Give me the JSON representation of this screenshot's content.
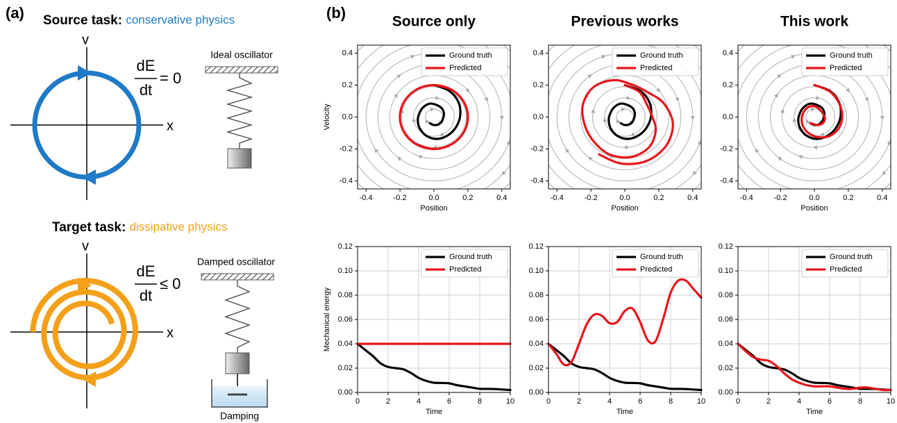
{
  "panel_a": {
    "label": "(a)",
    "source": {
      "heading": "Source task:",
      "subtitle": "conservative physics",
      "v": "v",
      "x": "x",
      "numerator": "dE",
      "denominator": "dt",
      "relation": "= 0",
      "oscillator": "Ideal oscillator"
    },
    "target": {
      "heading": "Target task:",
      "subtitle": "dissipative physics",
      "v": "v",
      "x": "x",
      "numerator": "dE",
      "denominator": "dt",
      "relation": "≤ 0",
      "oscillator": "Damped oscillator",
      "damping": "Damping"
    }
  },
  "panel_b": {
    "label": "(b)"
  },
  "chart_data": [
    {
      "type": "line",
      "title": "Source only",
      "x_label": "Position",
      "y_label": "Velocity",
      "streamlines": true,
      "grid": false,
      "legend": "upper right",
      "xlim": [
        -0.45,
        0.45
      ],
      "ylim": [
        -0.45,
        0.45
      ],
      "xticks": [
        -0.4,
        -0.2,
        {
          "value": 0,
          "label": "0.0"
        },
        0.2,
        0.4
      ],
      "yticks": [
        -0.4,
        -0.2,
        {
          "value": 0,
          "label": "0.0"
        },
        0.2,
        0.4
      ],
      "series": [
        {
          "name": "Ground truth",
          "color": "#000000",
          "x": [
            0,
            0.09,
            0.145,
            0.155,
            0.132,
            0.084,
            0.019,
            -0.044,
            -0.083,
            -0.095,
            -0.085,
            -0.062,
            -0.024,
            0.017,
            0.047,
            0.059,
            0.054,
            0.043,
            0.022,
            -0.004,
            -0.024
          ],
          "values": [
            0.2,
            0.164,
            0.093,
            0.011,
            -0.06,
            -0.113,
            -0.137,
            -0.118,
            -0.072,
            -0.02,
            0.025,
            0.062,
            0.084,
            0.075,
            0.054,
            0.022,
            -0.008,
            -0.033,
            -0.048,
            -0.049,
            -0.038
          ]
        },
        {
          "name": "Predicted",
          "color": "#e8141b",
          "x": [
            0,
            0.096,
            0.168,
            0.199,
            0.182,
            0.12,
            0.028,
            -0.07,
            -0.151,
            -0.196,
            -0.192,
            -0.141,
            -0.056,
            0.043,
            0.131,
            0.188,
            0.198,
            0.16,
            0.082,
            -0.015,
            -0.109
          ],
          "values": [
            0.2,
            0.176,
            0.108,
            0.014,
            -0.083,
            -0.16,
            -0.198,
            -0.187,
            -0.131,
            -0.042,
            0.057,
            0.142,
            0.192,
            0.195,
            0.151,
            0.069,
            -0.029,
            -0.12,
            -0.182,
            -0.199,
            -0.168
          ]
        }
      ]
    },
    {
      "type": "line",
      "title": "Previous works",
      "x_label": "Position",
      "streamlines": true,
      "grid": false,
      "legend": "upper right",
      "xlim": [
        -0.45,
        0.45
      ],
      "ylim": [
        -0.45,
        0.45
      ],
      "xticks": [
        -0.4,
        -0.2,
        {
          "value": 0,
          "label": "0.0"
        },
        0.2,
        0.4
      ],
      "yticks": [
        -0.4,
        -0.2,
        {
          "value": 0,
          "label": "0.0"
        },
        0.2,
        0.4
      ],
      "series": [
        {
          "name": "Ground truth",
          "color": "#000000",
          "x": [
            0,
            0.09,
            0.145,
            0.155,
            0.132,
            0.084,
            0.019,
            -0.044,
            -0.083,
            -0.095,
            -0.085,
            -0.062,
            -0.024,
            0.017,
            0.047,
            0.059,
            0.054,
            0.043,
            0.022,
            -0.004,
            -0.024
          ],
          "values": [
            0.2,
            0.164,
            0.093,
            0.011,
            -0.06,
            -0.113,
            -0.137,
            -0.118,
            -0.072,
            -0.02,
            0.025,
            0.062,
            0.084,
            0.075,
            0.054,
            0.022,
            -0.008,
            -0.033,
            -0.048,
            -0.049,
            -0.038
          ]
        },
        {
          "name": "Predicted",
          "color": "#e8141b",
          "x": [
            0,
            0.086,
            0.128,
            0.158,
            0.182,
            0.142,
            0.036,
            -0.088,
            -0.181,
            -0.236,
            -0.248,
            -0.186,
            -0.067,
            0.045,
            0.135,
            0.23,
            0.283,
            0.242,
            0.125,
            -0.022,
            -0.152
          ],
          "values": [
            0.2,
            0.157,
            0.082,
            0.011,
            -0.083,
            -0.19,
            -0.25,
            -0.235,
            -0.156,
            -0.051,
            0.074,
            0.186,
            0.231,
            0.202,
            0.155,
            0.085,
            -0.042,
            -0.182,
            -0.276,
            -0.291,
            -0.234
          ]
        }
      ]
    },
    {
      "type": "line",
      "title": "This work",
      "x_label": "Position",
      "streamlines": true,
      "grid": false,
      "legend": "upper right",
      "xlim": [
        -0.45,
        0.45
      ],
      "ylim": [
        -0.45,
        0.45
      ],
      "xticks": [
        -0.4,
        -0.2,
        {
          "value": 0,
          "label": "0.0"
        },
        0.2,
        0.4
      ],
      "yticks": [
        -0.4,
        -0.2,
        {
          "value": 0,
          "label": "0.0"
        },
        0.2,
        0.4
      ],
      "series": [
        {
          "name": "Ground truth",
          "color": "#000000",
          "x": [
            0,
            0.09,
            0.145,
            0.155,
            0.132,
            0.084,
            0.019,
            -0.044,
            -0.083,
            -0.095,
            -0.085,
            -0.062,
            -0.024,
            0.017,
            0.047,
            0.059,
            0.054,
            0.043,
            0.022,
            -0.004,
            -0.024
          ],
          "values": [
            0.2,
            0.164,
            0.093,
            0.011,
            -0.06,
            -0.113,
            -0.137,
            -0.118,
            -0.072,
            -0.02,
            0.025,
            0.062,
            0.084,
            0.075,
            0.054,
            0.022,
            -0.008,
            -0.033,
            -0.048,
            -0.049,
            -0.038
          ]
        },
        {
          "name": "Predicted",
          "color": "#e8141b",
          "x": [
            0,
            0.088,
            0.143,
            0.164,
            0.146,
            0.089,
            0.018,
            -0.037,
            -0.067,
            -0.075,
            -0.068,
            -0.05,
            -0.02,
            0.014,
            0.036,
            0.052,
            0.062,
            0.05,
            0.023,
            -0.003,
            -0.024
          ],
          "values": [
            0.2,
            0.162,
            0.092,
            0.012,
            -0.067,
            -0.119,
            -0.125,
            -0.098,
            -0.058,
            -0.016,
            0.02,
            0.05,
            0.068,
            0.062,
            0.041,
            0.019,
            -0.009,
            -0.038,
            -0.05,
            -0.045,
            -0.038
          ]
        }
      ]
    },
    {
      "type": "line",
      "x_label": "Time",
      "y_label": "Mechanical energy",
      "streamlines": false,
      "grid": true,
      "legend": "upper right",
      "xlim": [
        0,
        10
      ],
      "ylim": [
        0,
        0.12
      ],
      "xticks": [
        0,
        2,
        4,
        6,
        8,
        10
      ],
      "yticks": [
        {
          "value": 0,
          "label": "0.00"
        },
        {
          "value": 0.02,
          "label": "0.02"
        },
        {
          "value": 0.04,
          "label": "0.04"
        },
        {
          "value": 0.06,
          "label": "0.06"
        },
        {
          "value": 0.08,
          "label": "0.08"
        },
        {
          "value": 0.1,
          "label": "0.10"
        },
        {
          "value": 0.12,
          "label": "0.12"
        }
      ],
      "series": [
        {
          "name": "Ground truth",
          "color": "#000000",
          "x": [
            0,
            0.5,
            1,
            1.5,
            2,
            2.5,
            3,
            3.5,
            4,
            4.5,
            5,
            5.5,
            6,
            6.5,
            7,
            7.5,
            8,
            8.5,
            9,
            9.5,
            10
          ],
          "values": [
            0.04,
            0.035,
            0.03,
            0.024,
            0.021,
            0.02,
            0.019,
            0.016,
            0.012,
            0.0095,
            0.008,
            0.0078,
            0.0075,
            0.006,
            0.005,
            0.004,
            0.003,
            0.0029,
            0.0028,
            0.0024,
            0.002
          ]
        },
        {
          "name": "Predicted",
          "color": "#e8141b",
          "x": [
            0,
            10
          ],
          "values": [
            0.04,
            0.04
          ]
        }
      ]
    },
    {
      "type": "line",
      "x_label": "Time",
      "streamlines": false,
      "grid": true,
      "legend": "upper right",
      "xlim": [
        0,
        10
      ],
      "ylim": [
        0,
        0.12
      ],
      "xticks": [
        0,
        2,
        4,
        6,
        8,
        10
      ],
      "yticks": [
        {
          "value": 0,
          "label": "0.00"
        },
        {
          "value": 0.02,
          "label": "0.02"
        },
        {
          "value": 0.04,
          "label": "0.04"
        },
        {
          "value": 0.06,
          "label": "0.06"
        },
        {
          "value": 0.08,
          "label": "0.08"
        },
        {
          "value": 0.1,
          "label": "0.10"
        },
        {
          "value": 0.12,
          "label": "0.12"
        }
      ],
      "series": [
        {
          "name": "Ground truth",
          "color": "#000000",
          "x": [
            0,
            0.5,
            1,
            1.5,
            2,
            2.5,
            3,
            3.5,
            4,
            4.5,
            5,
            5.5,
            6,
            6.5,
            7,
            7.5,
            8,
            8.5,
            9,
            9.5,
            10
          ],
          "values": [
            0.04,
            0.035,
            0.03,
            0.024,
            0.021,
            0.02,
            0.019,
            0.016,
            0.012,
            0.0095,
            0.008,
            0.0078,
            0.0075,
            0.006,
            0.005,
            0.004,
            0.003,
            0.0029,
            0.0028,
            0.0024,
            0.002
          ]
        },
        {
          "name": "Predicted",
          "color": "#e8141b",
          "x": [
            0,
            0.5,
            1,
            1.5,
            2,
            2.5,
            3,
            3.5,
            4,
            4.5,
            5,
            5.5,
            6,
            6.5,
            7,
            7.5,
            8,
            8.5,
            9,
            9.5,
            10
          ],
          "values": [
            0.04,
            0.032,
            0.023,
            0.025,
            0.04,
            0.056,
            0.064,
            0.063,
            0.057,
            0.058,
            0.067,
            0.069,
            0.058,
            0.043,
            0.042,
            0.06,
            0.082,
            0.092,
            0.092,
            0.085,
            0.078
          ]
        }
      ]
    },
    {
      "type": "line",
      "x_label": "Time",
      "streamlines": false,
      "grid": true,
      "legend": "upper right",
      "xlim": [
        0,
        10
      ],
      "ylim": [
        0,
        0.12
      ],
      "xticks": [
        0,
        2,
        4,
        6,
        8,
        10
      ],
      "yticks": [
        {
          "value": 0,
          "label": "0.00"
        },
        {
          "value": 0.02,
          "label": "0.02"
        },
        {
          "value": 0.04,
          "label": "0.04"
        },
        {
          "value": 0.06,
          "label": "0.06"
        },
        {
          "value": 0.08,
          "label": "0.08"
        },
        {
          "value": 0.1,
          "label": "0.10"
        },
        {
          "value": 0.12,
          "label": "0.12"
        }
      ],
      "series": [
        {
          "name": "Ground truth",
          "color": "#000000",
          "x": [
            0,
            0.5,
            1,
            1.5,
            2,
            2.5,
            3,
            3.5,
            4,
            4.5,
            5,
            5.5,
            6,
            6.5,
            7,
            7.5,
            8,
            8.5,
            9,
            9.5,
            10
          ],
          "values": [
            0.04,
            0.035,
            0.03,
            0.024,
            0.021,
            0.02,
            0.019,
            0.016,
            0.012,
            0.0095,
            0.008,
            0.0078,
            0.0075,
            0.006,
            0.005,
            0.004,
            0.003,
            0.0029,
            0.0028,
            0.0024,
            0.002
          ]
        },
        {
          "name": "Predicted",
          "color": "#e8141b",
          "x": [
            0,
            0.5,
            1,
            1.5,
            2,
            2.5,
            3,
            3.5,
            4,
            4.5,
            5,
            5.5,
            6,
            6.5,
            7,
            7.5,
            8,
            8.5,
            9,
            9.5,
            10
          ],
          "values": [
            0.04,
            0.034,
            0.029,
            0.027,
            0.026,
            0.022,
            0.016,
            0.011,
            0.008,
            0.006,
            0.005,
            0.005,
            0.005,
            0.004,
            0.003,
            0.003,
            0.004,
            0.004,
            0.003,
            0.002,
            0.002
          ]
        }
      ]
    }
  ]
}
